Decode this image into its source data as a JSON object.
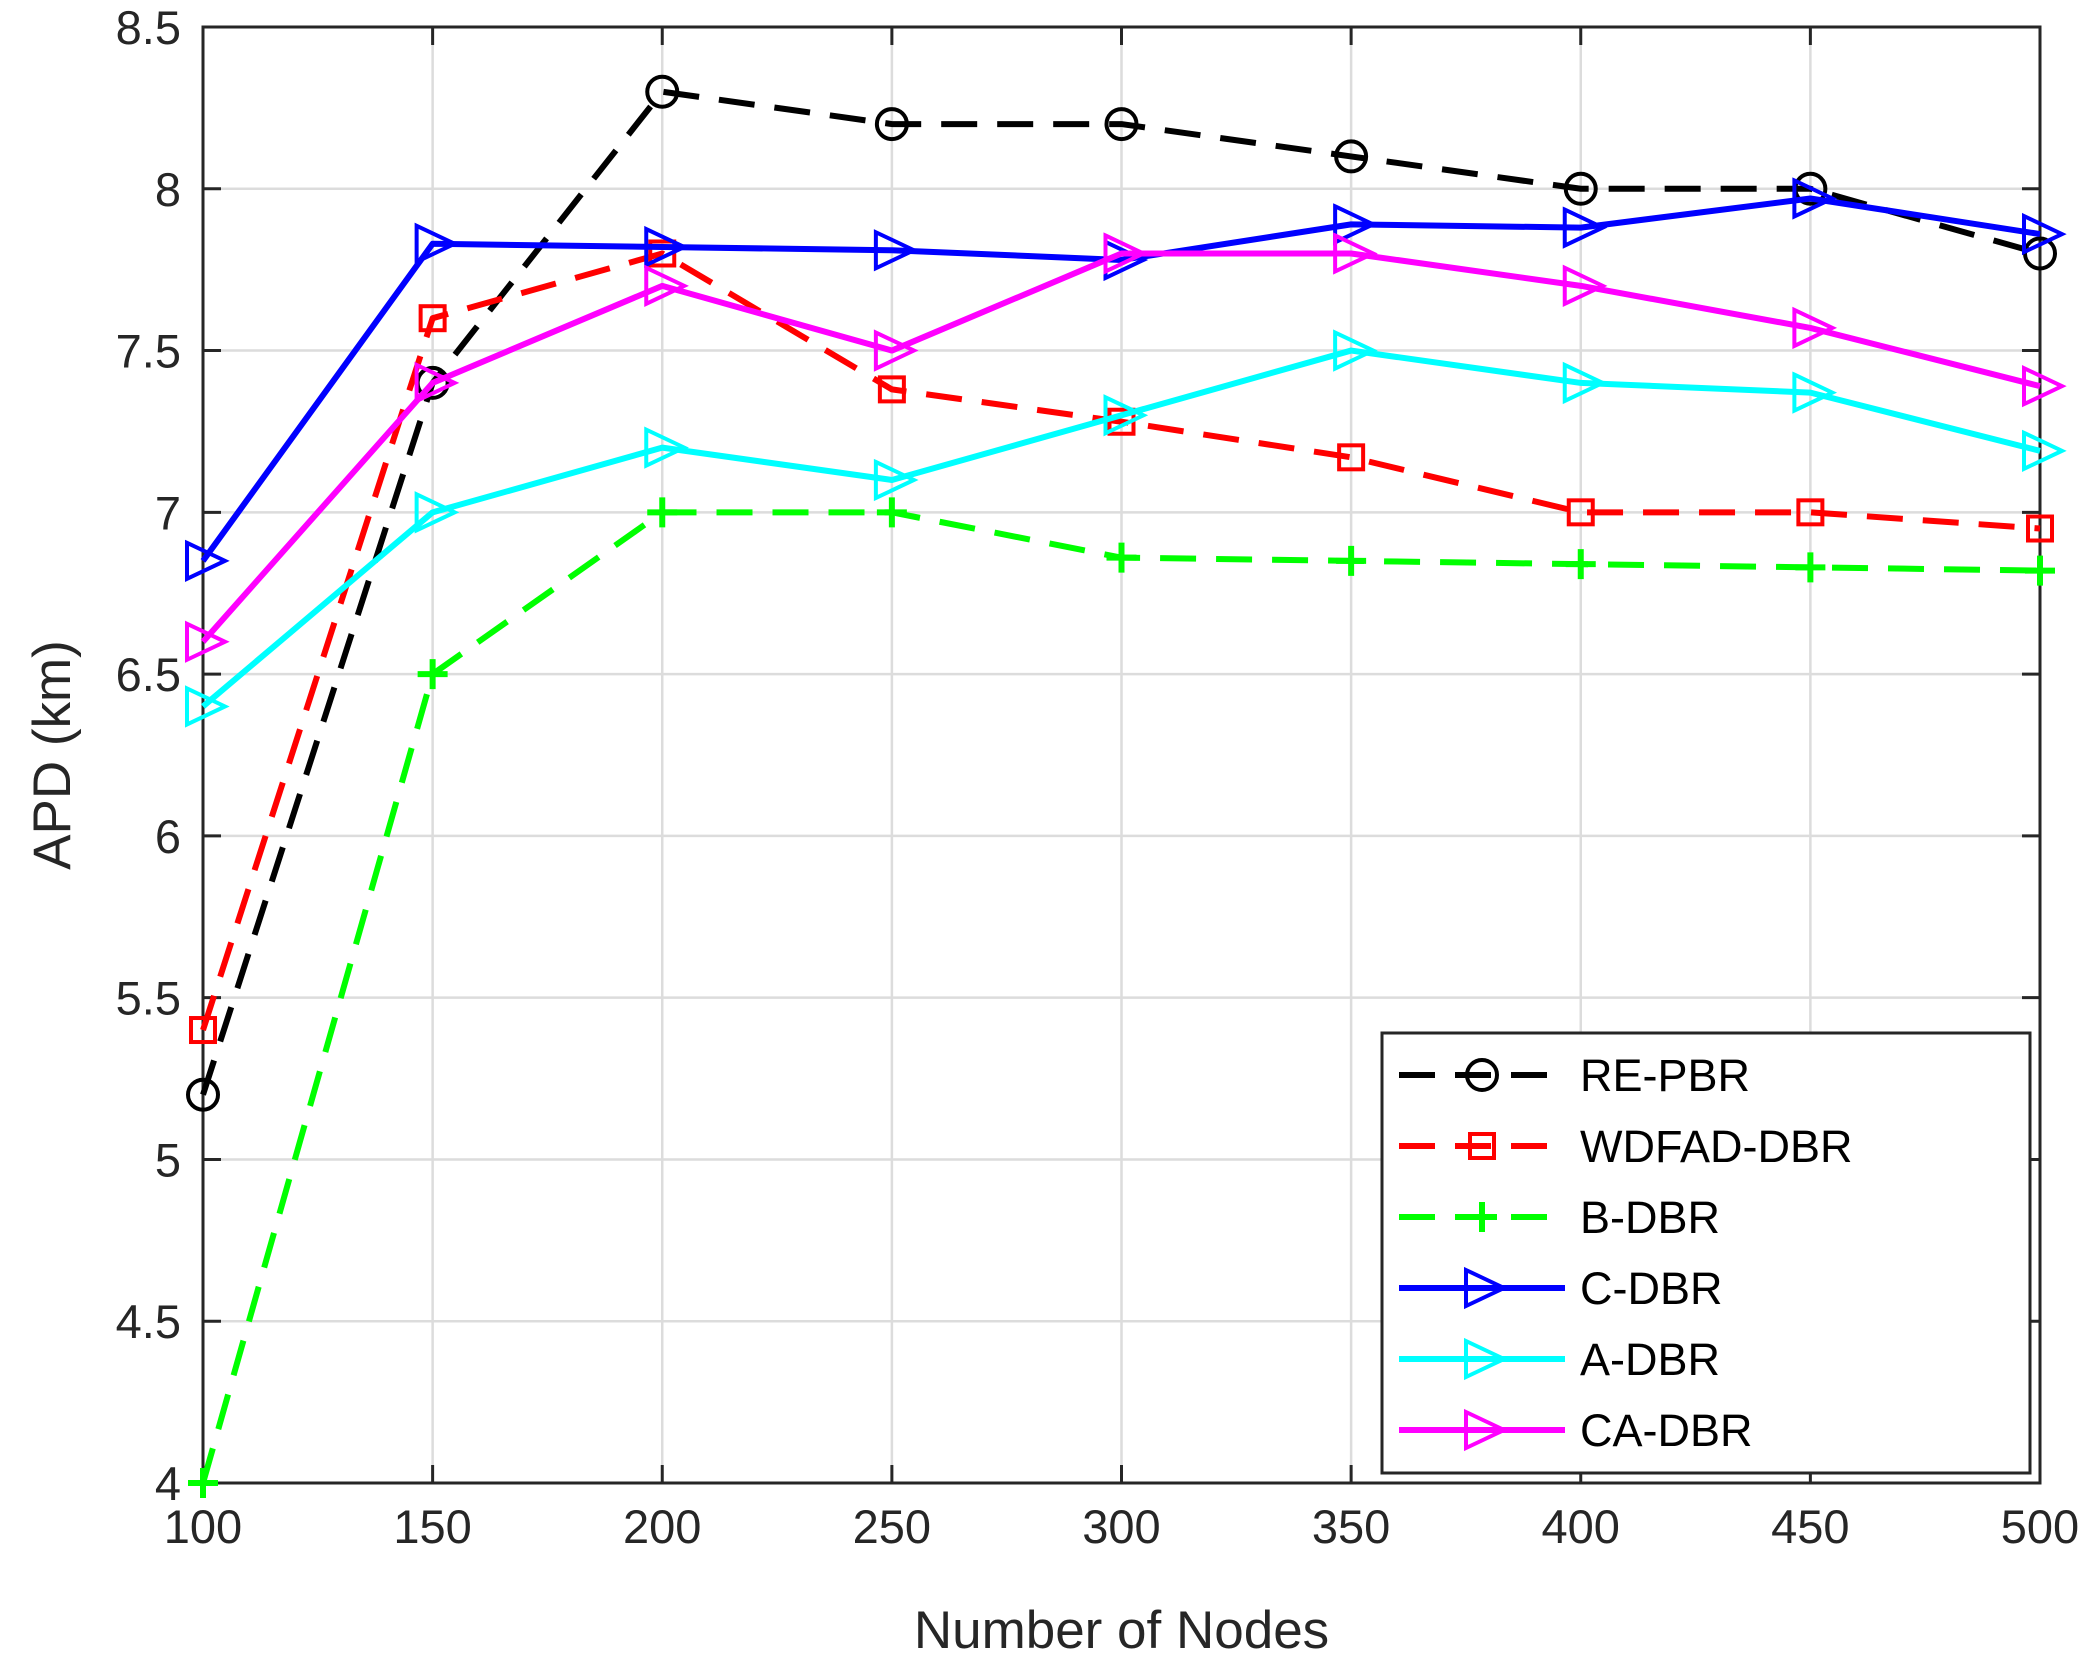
{
  "chart_data": {
    "type": "line",
    "title": "",
    "xlabel": "Number of Nodes",
    "ylabel": "APD (km)",
    "x": [
      100,
      150,
      200,
      250,
      300,
      350,
      400,
      450,
      500
    ],
    "xlim": [
      100,
      500
    ],
    "ylim": [
      4,
      8.5
    ],
    "xticks": [
      "100",
      "150",
      "200",
      "250",
      "300",
      "350",
      "400",
      "450",
      "500"
    ],
    "yticks": [
      "4",
      "4.5",
      "5",
      "5.5",
      "6",
      "6.5",
      "7",
      "7.5",
      "8",
      "8.5"
    ],
    "grid": true,
    "legend_position": "bottom-right",
    "series": [
      {
        "name": "RE-PBR",
        "color": "#000000",
        "line": "dashed",
        "marker": "circle",
        "values": [
          5.2,
          7.4,
          8.3,
          8.2,
          8.2,
          8.1,
          8.0,
          8.0,
          7.8
        ]
      },
      {
        "name": "WDFAD-DBR",
        "color": "#ff0000",
        "line": "dashed",
        "marker": "square",
        "values": [
          5.4,
          7.6,
          7.8,
          7.38,
          7.28,
          7.17,
          7.0,
          7.0,
          6.95
        ]
      },
      {
        "name": "B-DBR",
        "color": "#00ff00",
        "line": "dashed",
        "marker": "plus",
        "values": [
          4.0,
          6.5,
          7.0,
          7.0,
          6.86,
          6.85,
          6.84,
          6.83,
          6.82
        ]
      },
      {
        "name": "C-DBR",
        "color": "#0000ff",
        "line": "solid",
        "marker": "triangle-right",
        "values": [
          6.85,
          7.83,
          7.82,
          7.81,
          7.78,
          7.89,
          7.88,
          7.97,
          7.86
        ]
      },
      {
        "name": "A-DBR",
        "color": "#00ffff",
        "line": "solid",
        "marker": "triangle-right",
        "values": [
          6.4,
          7.0,
          7.2,
          7.1,
          7.3,
          7.5,
          7.4,
          7.37,
          7.19
        ]
      },
      {
        "name": "CA-DBR",
        "color": "#ff00ff",
        "line": "solid",
        "marker": "triangle-right",
        "values": [
          6.6,
          7.4,
          7.7,
          7.5,
          7.8,
          7.8,
          7.7,
          7.57,
          7.39
        ]
      }
    ]
  }
}
